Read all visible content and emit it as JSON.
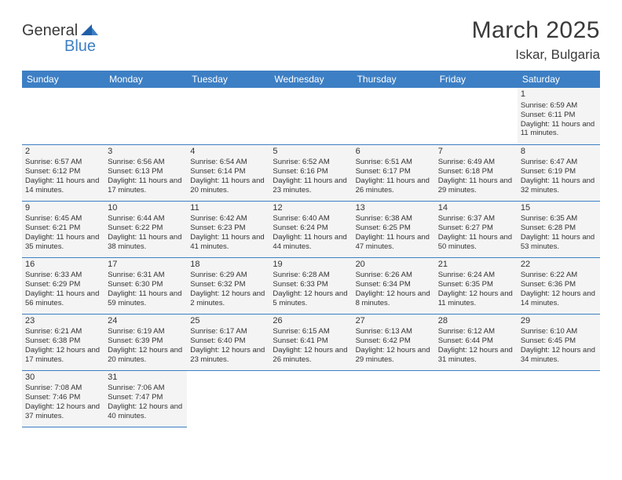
{
  "brand": {
    "part1": "General",
    "part2": "Blue"
  },
  "title": "March 2025",
  "location": "Iskar, Bulgaria",
  "colors": {
    "header_bg": "#3d7fc4",
    "header_text": "#ffffff",
    "cell_bg": "#f4f4f4",
    "cell_border": "#3d7fc4",
    "page_bg": "#ffffff",
    "text": "#333333"
  },
  "typography": {
    "title_fontsize": 30,
    "location_fontsize": 17,
    "dayheader_fontsize": 12,
    "cell_fontsize": 9.5
  },
  "day_headers": [
    "Sunday",
    "Monday",
    "Tuesday",
    "Wednesday",
    "Thursday",
    "Friday",
    "Saturday"
  ],
  "weeks": [
    [
      null,
      null,
      null,
      null,
      null,
      null,
      {
        "n": "1",
        "sr": "6:59 AM",
        "ss": "6:11 PM",
        "dl": "11 hours and 11 minutes."
      }
    ],
    [
      {
        "n": "2",
        "sr": "6:57 AM",
        "ss": "6:12 PM",
        "dl": "11 hours and 14 minutes."
      },
      {
        "n": "3",
        "sr": "6:56 AM",
        "ss": "6:13 PM",
        "dl": "11 hours and 17 minutes."
      },
      {
        "n": "4",
        "sr": "6:54 AM",
        "ss": "6:14 PM",
        "dl": "11 hours and 20 minutes."
      },
      {
        "n": "5",
        "sr": "6:52 AM",
        "ss": "6:16 PM",
        "dl": "11 hours and 23 minutes."
      },
      {
        "n": "6",
        "sr": "6:51 AM",
        "ss": "6:17 PM",
        "dl": "11 hours and 26 minutes."
      },
      {
        "n": "7",
        "sr": "6:49 AM",
        "ss": "6:18 PM",
        "dl": "11 hours and 29 minutes."
      },
      {
        "n": "8",
        "sr": "6:47 AM",
        "ss": "6:19 PM",
        "dl": "11 hours and 32 minutes."
      }
    ],
    [
      {
        "n": "9",
        "sr": "6:45 AM",
        "ss": "6:21 PM",
        "dl": "11 hours and 35 minutes."
      },
      {
        "n": "10",
        "sr": "6:44 AM",
        "ss": "6:22 PM",
        "dl": "11 hours and 38 minutes."
      },
      {
        "n": "11",
        "sr": "6:42 AM",
        "ss": "6:23 PM",
        "dl": "11 hours and 41 minutes."
      },
      {
        "n": "12",
        "sr": "6:40 AM",
        "ss": "6:24 PM",
        "dl": "11 hours and 44 minutes."
      },
      {
        "n": "13",
        "sr": "6:38 AM",
        "ss": "6:25 PM",
        "dl": "11 hours and 47 minutes."
      },
      {
        "n": "14",
        "sr": "6:37 AM",
        "ss": "6:27 PM",
        "dl": "11 hours and 50 minutes."
      },
      {
        "n": "15",
        "sr": "6:35 AM",
        "ss": "6:28 PM",
        "dl": "11 hours and 53 minutes."
      }
    ],
    [
      {
        "n": "16",
        "sr": "6:33 AM",
        "ss": "6:29 PM",
        "dl": "11 hours and 56 minutes."
      },
      {
        "n": "17",
        "sr": "6:31 AM",
        "ss": "6:30 PM",
        "dl": "11 hours and 59 minutes."
      },
      {
        "n": "18",
        "sr": "6:29 AM",
        "ss": "6:32 PM",
        "dl": "12 hours and 2 minutes."
      },
      {
        "n": "19",
        "sr": "6:28 AM",
        "ss": "6:33 PM",
        "dl": "12 hours and 5 minutes."
      },
      {
        "n": "20",
        "sr": "6:26 AM",
        "ss": "6:34 PM",
        "dl": "12 hours and 8 minutes."
      },
      {
        "n": "21",
        "sr": "6:24 AM",
        "ss": "6:35 PM",
        "dl": "12 hours and 11 minutes."
      },
      {
        "n": "22",
        "sr": "6:22 AM",
        "ss": "6:36 PM",
        "dl": "12 hours and 14 minutes."
      }
    ],
    [
      {
        "n": "23",
        "sr": "6:21 AM",
        "ss": "6:38 PM",
        "dl": "12 hours and 17 minutes."
      },
      {
        "n": "24",
        "sr": "6:19 AM",
        "ss": "6:39 PM",
        "dl": "12 hours and 20 minutes."
      },
      {
        "n": "25",
        "sr": "6:17 AM",
        "ss": "6:40 PM",
        "dl": "12 hours and 23 minutes."
      },
      {
        "n": "26",
        "sr": "6:15 AM",
        "ss": "6:41 PM",
        "dl": "12 hours and 26 minutes."
      },
      {
        "n": "27",
        "sr": "6:13 AM",
        "ss": "6:42 PM",
        "dl": "12 hours and 29 minutes."
      },
      {
        "n": "28",
        "sr": "6:12 AM",
        "ss": "6:44 PM",
        "dl": "12 hours and 31 minutes."
      },
      {
        "n": "29",
        "sr": "6:10 AM",
        "ss": "6:45 PM",
        "dl": "12 hours and 34 minutes."
      }
    ],
    [
      {
        "n": "30",
        "sr": "7:08 AM",
        "ss": "7:46 PM",
        "dl": "12 hours and 37 minutes."
      },
      {
        "n": "31",
        "sr": "7:06 AM",
        "ss": "7:47 PM",
        "dl": "12 hours and 40 minutes."
      },
      null,
      null,
      null,
      null,
      null
    ]
  ],
  "labels": {
    "sunrise": "Sunrise: ",
    "sunset": "Sunset: ",
    "daylight": "Daylight: "
  }
}
